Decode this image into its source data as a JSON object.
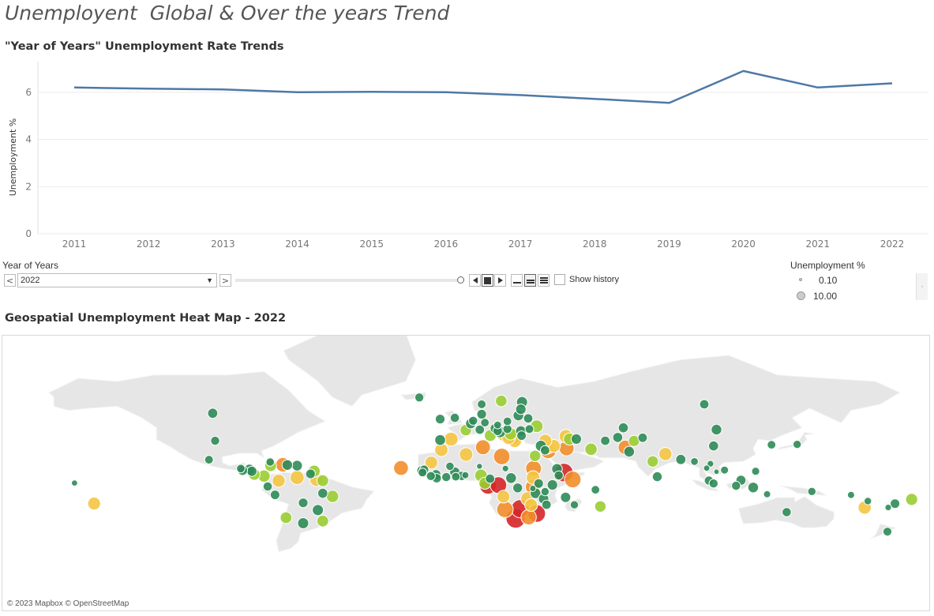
{
  "dashboard": {
    "title": "Unemployent  Global & Over the years Trend"
  },
  "line_section": {
    "title": "\"Year of Years\" Unemployment Rate Trends"
  },
  "controls": {
    "filter_label": "Year of Years",
    "selected_year": "2022",
    "prev_label": "<",
    "next_label": ">",
    "show_history_label": "Show history",
    "slider_value": 2022
  },
  "legend": {
    "title": "Unemployment %",
    "items": [
      "0.10",
      "10.00"
    ]
  },
  "map_section": {
    "title": "Geospatial Unemployment Heat Map - 2022",
    "credit": "© 2023 Mapbox © OpenStreetMap"
  },
  "colors": {
    "line": "#4e79a7",
    "low": "#2e8b57",
    "mid_low": "#9acd32",
    "mid": "#f4c542",
    "mid_high": "#f28e2b",
    "high": "#d62728",
    "land": "#e6e6e6"
  },
  "chart_data": [
    {
      "type": "line",
      "ylabel": "Unemployment %",
      "x": [
        "2011",
        "2012",
        "2013",
        "2014",
        "2015",
        "2016",
        "2017",
        "2018",
        "2019",
        "2020",
        "2021",
        "2022"
      ],
      "series": [
        {
          "values": [
            6.2,
            6.15,
            6.12,
            6.0,
            6.02,
            6.0,
            5.88,
            5.72,
            5.55,
            6.9,
            6.2,
            6.38
          ]
        }
      ],
      "yticks": [
        0,
        2,
        4,
        6
      ],
      "ylim": [
        0,
        7.3
      ],
      "grid": true
    },
    {
      "type": "scatter",
      "title": "Geospatial Unemployment Heat Map - 2022",
      "note_encoding": "size and color = Unemployment %",
      "points": [
        {
          "lon": -101,
          "lat": 56.5,
          "v": 5.2
        },
        {
          "lon": -100,
          "lat": 39.0,
          "v": 3.6
        },
        {
          "lon": -16.5,
          "lat": 64.0,
          "v": 3.6
        },
        {
          "lon": -102.5,
          "lat": 23.5,
          "v": 3.2
        },
        {
          "lon": -89.5,
          "lat": 15.5,
          "v": 3.0
        },
        {
          "lon": -88.8,
          "lat": 13.8,
          "v": 5.0
        },
        {
          "lon": -86.0,
          "lat": 14.5,
          "v": 6.5
        },
        {
          "lon": -85.0,
          "lat": 12.9,
          "v": 5.2
        },
        {
          "lon": -84.0,
          "lat": 10.0,
          "v": 7.5
        },
        {
          "lon": -80.0,
          "lat": 8.5,
          "v": 8.8
        },
        {
          "lon": -77.5,
          "lat": 21.5,
          "v": 2.8
        },
        {
          "lon": -77.3,
          "lat": 18.1,
          "v": 8.0
        },
        {
          "lon": -72.3,
          "lat": 19.0,
          "v": 14.0
        },
        {
          "lon": -70.5,
          "lat": 18.8,
          "v": 5.8
        },
        {
          "lon": -66.5,
          "lat": 18.2,
          "v": 6.0
        },
        {
          "lon": -61.0,
          "lat": 10.5,
          "v": 4.5
        },
        {
          "lon": -59.5,
          "lat": 13.1,
          "v": 8.5
        },
        {
          "lon": -66.5,
          "lat": 7.0,
          "v": 13.0
        },
        {
          "lon": -58.5,
          "lat": 5.0,
          "v": 12.0
        },
        {
          "lon": -56.0,
          "lat": 4.0,
          "v": 8.0
        },
        {
          "lon": -74.0,
          "lat": 4.0,
          "v": 10.5
        },
        {
          "lon": -78.5,
          "lat": -1.5,
          "v": 3.8
        },
        {
          "lon": -75.5,
          "lat": -9.5,
          "v": 4.2
        },
        {
          "lon": -64.0,
          "lat": -17.0,
          "v": 4.5
        },
        {
          "lon": -52.0,
          "lat": -11.0,
          "v": 9.3
        },
        {
          "lon": -58.0,
          "lat": -23.5,
          "v": 6.8
        },
        {
          "lon": -71.0,
          "lat": -30.0,
          "v": 7.9
        },
        {
          "lon": -64.0,
          "lat": -34.5,
          "v": 6.6
        },
        {
          "lon": -56.0,
          "lat": -32.8,
          "v": 7.9
        },
        {
          "lon": -149.5,
          "lat": -17.6,
          "v": 10.0
        },
        {
          "lon": -157.5,
          "lat": 1.8,
          "v": 0.8
        },
        {
          "lon": -8.0,
          "lat": 53.3,
          "v": 4.5
        },
        {
          "lon": -2.0,
          "lat": 54.0,
          "v": 3.7
        },
        {
          "lon": -8.0,
          "lat": 39.5,
          "v": 6.2
        },
        {
          "lon": -3.5,
          "lat": 40.2,
          "v": 12.9
        },
        {
          "lon": 2.5,
          "lat": 46.5,
          "v": 7.4
        },
        {
          "lon": 4.5,
          "lat": 50.6,
          "v": 5.5
        },
        {
          "lon": 5.5,
          "lat": 52.3,
          "v": 3.5
        },
        {
          "lon": 10.3,
          "lat": 51.2,
          "v": 3.0
        },
        {
          "lon": 9.0,
          "lat": 56.0,
          "v": 4.5
        },
        {
          "lon": 8.2,
          "lat": 46.8,
          "v": 4.0
        },
        {
          "lon": 12.5,
          "lat": 42.8,
          "v": 8.1
        },
        {
          "lon": 14.5,
          "lat": 47.6,
          "v": 4.8
        },
        {
          "lon": 15.5,
          "lat": 49.8,
          "v": 2.2
        },
        {
          "lon": 19.5,
          "lat": 52.0,
          "v": 2.9
        },
        {
          "lon": 19.5,
          "lat": 47.2,
          "v": 3.6
        },
        {
          "lon": 15.5,
          "lat": 46.0,
          "v": 4.0
        },
        {
          "lon": 16.5,
          "lat": 45.1,
          "v": 6.8
        },
        {
          "lon": 20.8,
          "lat": 44.0,
          "v": 9.0
        },
        {
          "lon": 17.8,
          "lat": 44.0,
          "v": 13.5
        },
        {
          "lon": 20.0,
          "lat": 41.2,
          "v": 11.5
        },
        {
          "lon": 21.7,
          "lat": 41.6,
          "v": 14.4
        },
        {
          "lon": 22.5,
          "lat": 39.1,
          "v": 12.4
        },
        {
          "lon": 25.3,
          "lat": 42.7,
          "v": 4.3
        },
        {
          "lon": 25.0,
          "lat": 45.9,
          "v": 5.6
        },
        {
          "lon": 28.5,
          "lat": 47.2,
          "v": 3.1
        },
        {
          "lon": 31.5,
          "lat": 49.0,
          "v": 9.8
        },
        {
          "lon": 28.0,
          "lat": 53.7,
          "v": 4.0
        },
        {
          "lon": 24.0,
          "lat": 55.3,
          "v": 6.0
        },
        {
          "lon": 25.0,
          "lat": 58.6,
          "v": 5.6
        },
        {
          "lon": 25.5,
          "lat": 62.0,
          "v": 6.8
        },
        {
          "lon": 17.0,
          "lat": 62.5,
          "v": 7.5
        },
        {
          "lon": 9.0,
          "lat": 61.0,
          "v": 3.2
        },
        {
          "lon": 35.0,
          "lat": 39.0,
          "v": 10.4
        },
        {
          "lon": 33.2,
          "lat": 35.1,
          "v": 6.8
        },
        {
          "lon": 35.8,
          "lat": 33.9,
          "v": 11.6
        },
        {
          "lon": 38.5,
          "lat": 35.0,
          "v": 10.6
        },
        {
          "lon": 34.9,
          "lat": 31.5,
          "v": 4.0
        },
        {
          "lon": 36.2,
          "lat": 31.2,
          "v": 18.0
        },
        {
          "lon": 43.7,
          "lat": 33.2,
          "v": 15.5
        },
        {
          "lon": 44.9,
          "lat": 40.2,
          "v": 8.6
        },
        {
          "lon": 43.4,
          "lat": 42.3,
          "v": 11.7
        },
        {
          "lon": 47.7,
          "lat": 40.3,
          "v": 5.6
        },
        {
          "lon": 53.7,
          "lat": 32.4,
          "v": 9.0
        },
        {
          "lon": 66.9,
          "lat": 48.0,
          "v": 4.9
        },
        {
          "lon": 64.6,
          "lat": 41.4,
          "v": 5.0
        },
        {
          "lon": 59.5,
          "lat": 39.0,
          "v": 4.1
        },
        {
          "lon": 74.8,
          "lat": 41.2,
          "v": 4.0
        },
        {
          "lon": 71.3,
          "lat": 38.9,
          "v": 7.0
        },
        {
          "lon": 100.0,
          "lat": 61.0,
          "v": 3.9
        },
        {
          "lon": 103.8,
          "lat": 35.0,
          "v": 4.9
        },
        {
          "lon": 127.5,
          "lat": 35.9,
          "v": 2.9
        },
        {
          "lon": 138.0,
          "lat": 36.2,
          "v": 2.6
        },
        {
          "lon": 105.0,
          "lat": 46.8,
          "v": 6.0
        },
        {
          "lon": 78.9,
          "lat": 22.0,
          "v": 7.3
        },
        {
          "lon": 69.3,
          "lat": 30.4,
          "v": 6.3
        },
        {
          "lon": 67.7,
          "lat": 33.9,
          "v": 14.1
        },
        {
          "lon": 84.1,
          "lat": 28.4,
          "v": 10.7
        },
        {
          "lon": 90.4,
          "lat": 23.7,
          "v": 5.1
        },
        {
          "lon": 80.8,
          "lat": 7.9,
          "v": 4.7
        },
        {
          "lon": 96.0,
          "lat": 21.9,
          "v": 2.2
        },
        {
          "lon": 101.0,
          "lat": 15.9,
          "v": 0.9
        },
        {
          "lon": 102.5,
          "lat": 19.9,
          "v": 1.2
        },
        {
          "lon": 105.0,
          "lat": 12.6,
          "v": 0.4
        },
        {
          "lon": 108.3,
          "lat": 14.1,
          "v": 2.3
        },
        {
          "lon": 121.0,
          "lat": 13.0,
          "v": 2.4
        },
        {
          "lon": 101.9,
          "lat": 4.2,
          "v": 3.7
        },
        {
          "lon": 103.8,
          "lat": 1.35,
          "v": 3.6
        },
        {
          "lon": 113.0,
          "lat": -0.8,
          "v": 3.5
        },
        {
          "lon": 115.0,
          "lat": 4.5,
          "v": 5.0
        },
        {
          "lon": 120.0,
          "lat": -2.5,
          "v": 5.8
        },
        {
          "lon": 125.7,
          "lat": -8.9,
          "v": 1.5
        },
        {
          "lon": 144.0,
          "lat": -6.3,
          "v": 2.7
        },
        {
          "lon": 160.0,
          "lat": -9.6,
          "v": 1.5
        },
        {
          "lon": 166.9,
          "lat": -15.4,
          "v": 1.8
        },
        {
          "lon": 178.0,
          "lat": -17.7,
          "v": 4.3
        },
        {
          "lon": 184.8,
          "lat": -13.8,
          "v": 8.5
        },
        {
          "lon": 175.2,
          "lat": -21.2,
          "v": 1.0
        },
        {
          "lon": 133.7,
          "lat": -25.3,
          "v": 3.7
        },
        {
          "lon": 174.9,
          "lat": -40.9,
          "v": 3.3
        },
        {
          "lon": 165.6,
          "lat": -21.3,
          "v": 11.0
        },
        {
          "lon": -7.5,
          "lat": 31.8,
          "v": 11.2
        },
        {
          "lon": 2.6,
          "lat": 28.0,
          "v": 12.0
        },
        {
          "lon": 9.5,
          "lat": 34.0,
          "v": 15.1
        },
        {
          "lon": 17.2,
          "lat": 26.3,
          "v": 19.6
        },
        {
          "lon": 30.8,
          "lat": 26.8,
          "v": 7.3
        },
        {
          "lon": 30.2,
          "lat": 15.6,
          "v": 17.7
        },
        {
          "lon": -11.6,
          "lat": 21.0,
          "v": 10.3
        },
        {
          "lon": -14.5,
          "lat": 14.5,
          "v": 3.7
        },
        {
          "lon": -15.3,
          "lat": 13.4,
          "v": 6.4
        },
        {
          "lon": -15.2,
          "lat": 11.8,
          "v": 3.2
        },
        {
          "lon": -9.7,
          "lat": 9.9,
          "v": 5.0
        },
        {
          "lon": -11.8,
          "lat": 8.5,
          "v": 3.5
        },
        {
          "lon": -9.4,
          "lat": 6.4,
          "v": 3.9
        },
        {
          "lon": -5.5,
          "lat": 7.5,
          "v": 3.5
        },
        {
          "lon": -1.6,
          "lat": 7.9,
          "v": 3.0
        },
        {
          "lon": 0.8,
          "lat": 8.6,
          "v": 3.9
        },
        {
          "lon": 2.3,
          "lat": 9.3,
          "v": 1.6
        },
        {
          "lon": -2.0,
          "lat": 12.2,
          "v": 5.4
        },
        {
          "lon": -4.0,
          "lat": 17.6,
          "v": 2.8
        },
        {
          "lon": 8.1,
          "lat": 17.6,
          "v": 0.7
        },
        {
          "lon": 8.7,
          "lat": 9.1,
          "v": 9.8
        },
        {
          "lon": 12.4,
          "lat": 6.0,
          "v": 3.9
        },
        {
          "lon": 10.3,
          "lat": 1.6,
          "v": 8.5
        },
        {
          "lon": 11.6,
          "lat": -0.8,
          "v": 20.4
        },
        {
          "lon": 18.7,
          "lat": 15.5,
          "v": 1.1
        },
        {
          "lon": 21.0,
          "lat": 6.6,
          "v": 6.1
        },
        {
          "lon": 15.8,
          "lat": -0.2,
          "v": 20.3
        },
        {
          "lon": 23.7,
          "lat": -2.9,
          "v": 4.6
        },
        {
          "lon": -24.0,
          "lat": 16.0,
          "v": 14.7
        },
        {
          "lon": 30.0,
          "lat": 7.0,
          "v": 12.0
        },
        {
          "lon": 39.8,
          "lat": 15.2,
          "v": 5.9
        },
        {
          "lon": 42.6,
          "lat": 11.8,
          "v": 26.1
        },
        {
          "lon": 40.5,
          "lat": 9.1,
          "v": 3.7
        },
        {
          "lon": 46.2,
          "lat": 5.2,
          "v": 19.9
        },
        {
          "lon": 32.3,
          "lat": 1.4,
          "v": 4.3
        },
        {
          "lon": 37.9,
          "lat": 0.0,
          "v": 5.7
        },
        {
          "lon": 29.9,
          "lat": -1.9,
          "v": 15.0
        },
        {
          "lon": 29.9,
          "lat": -3.4,
          "v": 0.9
        },
        {
          "lon": 34.9,
          "lat": -6.4,
          "v": 2.6
        },
        {
          "lon": 55.5,
          "lat": -4.7,
          "v": 3.0
        },
        {
          "lon": 57.5,
          "lat": -20.3,
          "v": 7.3
        },
        {
          "lon": 46.9,
          "lat": -18.8,
          "v": 2.6
        },
        {
          "lon": 17.9,
          "lat": -11.2,
          "v": 10.2
        },
        {
          "lon": 27.8,
          "lat": -13.1,
          "v": 12.9
        },
        {
          "lon": 34.3,
          "lat": -13.3,
          "v": 5.6
        },
        {
          "lon": 35.5,
          "lat": -18.7,
          "v": 3.9
        },
        {
          "lon": 29.2,
          "lat": -19.0,
          "v": 10.1
        },
        {
          "lon": 18.5,
          "lat": -22.9,
          "v": 19.7
        },
        {
          "lon": 24.7,
          "lat": -22.3,
          "v": 24.7
        },
        {
          "lon": 22.9,
          "lat": -30.6,
          "v": 29.8
        },
        {
          "lon": 28.2,
          "lat": -29.6,
          "v": 16.5
        },
        {
          "lon": 31.5,
          "lat": -26.5,
          "v": 22.9
        },
        {
          "lon": 43.3,
          "lat": -11.9,
          "v": 5.3
        },
        {
          "lon": 31.0,
          "lat": -8.0,
          "v": 6.0
        },
        {
          "lon": -56.0,
          "lat": -8.0,
          "v": 5.0
        }
      ]
    }
  ]
}
